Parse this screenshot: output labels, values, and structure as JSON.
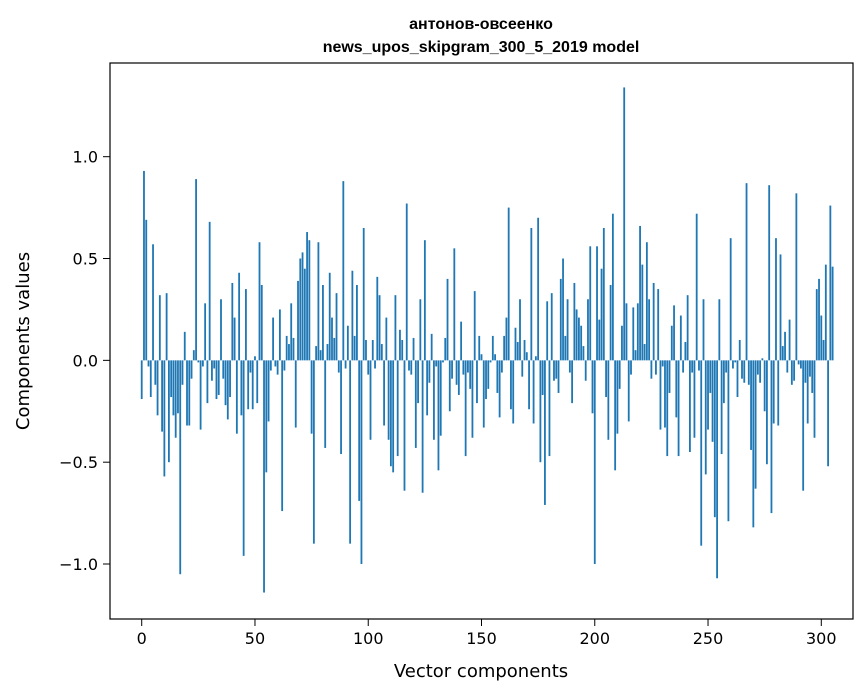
{
  "chart_data": {
    "type": "bar",
    "title": "антонов-овсеенко",
    "subtitle": "news_upos_skipgram_300_5_2019 model",
    "xlabel": "Vector components",
    "ylabel": "Components values",
    "xlim": [
      -14,
      314
    ],
    "ylim": [
      -1.27,
      1.46
    ],
    "x_ticks": [
      0,
      50,
      100,
      150,
      200,
      250,
      300
    ],
    "x_tick_labels": [
      "0",
      "50",
      "100",
      "150",
      "200",
      "250",
      "300"
    ],
    "y_ticks": [
      -1.0,
      -0.5,
      0.0,
      0.5,
      1.0
    ],
    "y_tick_labels": [
      "−1.0",
      "−0.5",
      "0.0",
      "0.5",
      "1.0"
    ],
    "bar_color": "#1f77b4",
    "grid": false,
    "legend": "none",
    "values": [
      -0.19,
      0.93,
      0.69,
      -0.03,
      -0.18,
      0.57,
      -0.12,
      -0.27,
      0.32,
      -0.35,
      -0.57,
      0.33,
      -0.5,
      -0.18,
      -0.27,
      -0.38,
      -0.26,
      -1.05,
      -0.12,
      0.14,
      -0.32,
      -0.32,
      -0.09,
      0.05,
      0.89,
      -0.01,
      -0.34,
      -0.03,
      0.28,
      -0.21,
      0.68,
      -0.1,
      -0.04,
      -0.19,
      -0.17,
      0.3,
      -0.09,
      -0.22,
      -0.29,
      -0.18,
      0.38,
      0.21,
      -0.36,
      0.43,
      -0.27,
      -0.96,
      0.35,
      -0.24,
      -0.06,
      -0.24,
      0.02,
      -0.21,
      0.58,
      0.37,
      -1.14,
      -0.55,
      -0.3,
      -0.05,
      0.21,
      -0.03,
      -0.07,
      0.25,
      -0.74,
      -0.05,
      0.12,
      0.08,
      0.28,
      0.11,
      -0.33,
      0.39,
      0.5,
      0.53,
      0.45,
      0.63,
      0.59,
      -0.36,
      -0.9,
      0.07,
      0.58,
      0.05,
      0.37,
      -0.43,
      0.08,
      0.43,
      0.21,
      0.11,
      0.33,
      -0.06,
      -0.46,
      0.88,
      -0.04,
      0.17,
      -0.9,
      0.44,
      0.12,
      0.37,
      -0.69,
      -1.0,
      0.65,
      0.1,
      -0.07,
      -0.39,
      0.1,
      -0.04,
      0.41,
      0.32,
      0.08,
      -0.32,
      0.21,
      -0.39,
      -0.52,
      -0.55,
      0.32,
      -0.47,
      0.15,
      0.1,
      -0.64,
      0.77,
      -0.05,
      -0.07,
      0.11,
      -0.43,
      -0.21,
      0.3,
      -0.65,
      0.59,
      -0.27,
      -0.11,
      0.13,
      -0.39,
      -0.03,
      -0.54,
      -0.37,
      -0.01,
      0.11,
      0.4,
      -0.25,
      -0.09,
      0.55,
      -0.12,
      -0.17,
      0.19,
      -0.07,
      -0.47,
      -0.06,
      -0.14,
      -0.38,
      0.34,
      -0.21,
      0.12,
      0.03,
      -0.33,
      -0.19,
      -0.14,
      -0.01,
      0.12,
      0.03,
      -0.16,
      -0.28,
      -0.06,
      0.12,
      0.21,
      0.75,
      -0.24,
      -0.31,
      0.16,
      0.09,
      0.3,
      -0.08,
      0.1,
      0.04,
      -0.24,
      0.65,
      -0.31,
      0.02,
      0.7,
      -0.5,
      -0.17,
      -0.71,
      0.29,
      -0.47,
      0.33,
      -0.1,
      -0.09,
      -0.16,
      0.4,
      0.5,
      0.12,
      0.3,
      -0.06,
      -0.21,
      0.38,
      0.25,
      0.21,
      0.17,
      0.07,
      -0.1,
      0.3,
      0.56,
      -0.26,
      -1.0,
      0.56,
      0.2,
      0.45,
      0.65,
      -0.18,
      -0.39,
      0.37,
      0.72,
      -0.54,
      -0.36,
      -0.14,
      0.17,
      1.34,
      0.28,
      -0.3,
      -0.07,
      0.26,
      0.05,
      0.28,
      0.66,
      0.47,
      0.08,
      0.58,
      0.3,
      -0.09,
      0.38,
      -0.07,
      0.35,
      -0.34,
      -0.03,
      -0.33,
      -0.47,
      -0.16,
      0.17,
      0.27,
      -0.28,
      -0.47,
      0.22,
      -0.06,
      0.09,
      0.32,
      -0.45,
      -0.06,
      -0.38,
      0.72,
      -0.05,
      -0.91,
      0.3,
      -0.56,
      -0.34,
      -0.16,
      -0.4,
      -0.77,
      -1.07,
      0.3,
      -0.46,
      -0.21,
      -0.06,
      -0.79,
      0.6,
      -0.04,
      -0.01,
      -0.18,
      0.1,
      -0.09,
      -0.11,
      0.87,
      -0.12,
      -0.44,
      -0.82,
      -0.63,
      -0.07,
      -0.11,
      0.01,
      -0.25,
      -0.51,
      0.86,
      -0.75,
      -0.31,
      0.6,
      -0.32,
      0.52,
      0.07,
      0.14,
      -0.06,
      0.2,
      -0.12,
      -0.1,
      0.82,
      -0.02,
      -0.04,
      -0.64,
      -0.11,
      -0.31,
      -0.08,
      -0.16,
      -0.38,
      0.35,
      0.4,
      0.22,
      0.1,
      0.47,
      -0.52,
      0.76,
      0.46
    ],
    "values_note": ""
  }
}
